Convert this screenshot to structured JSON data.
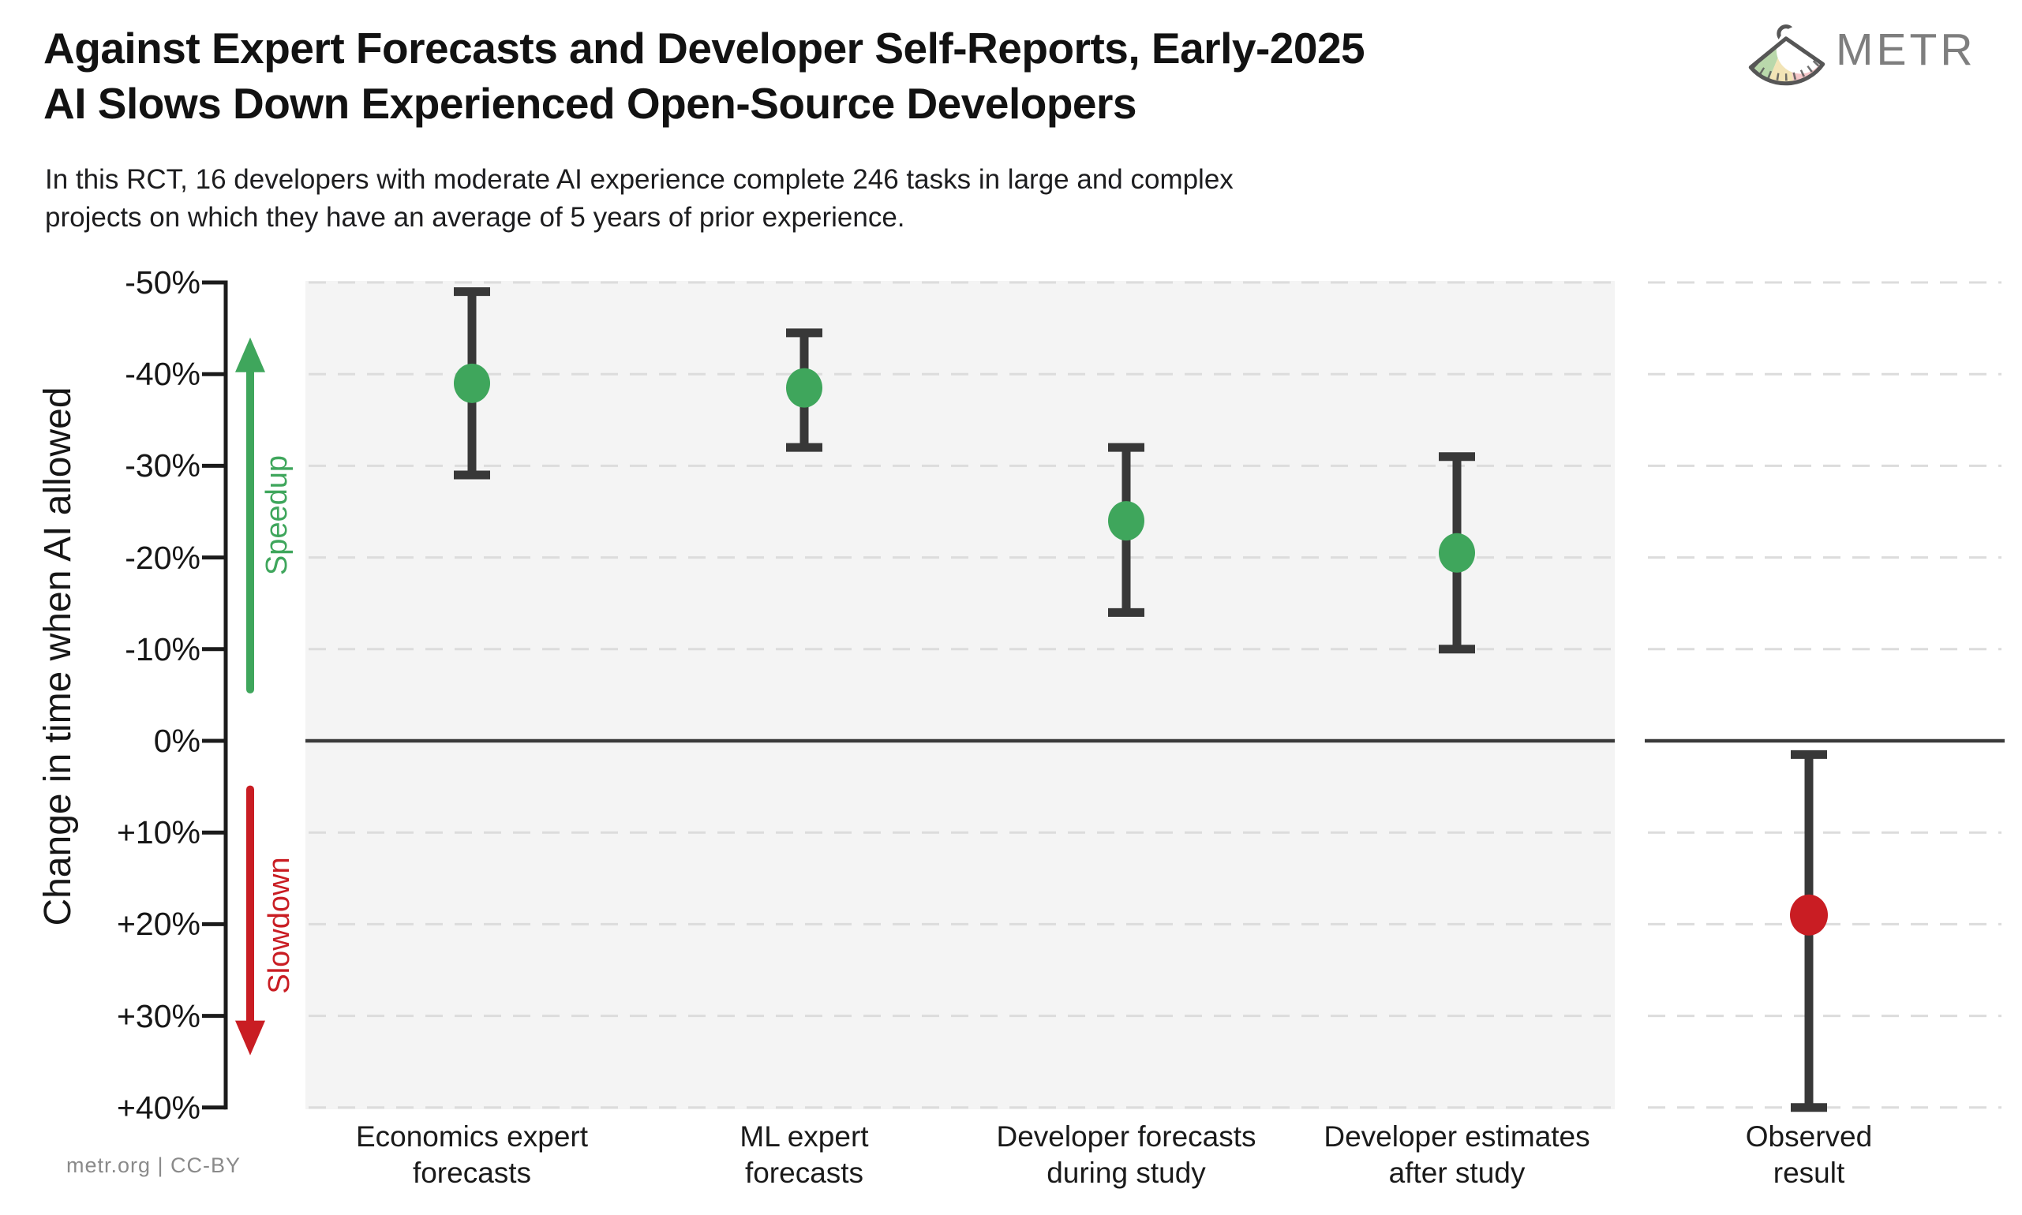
{
  "header": {
    "title_line1": "Against Expert Forecasts and Developer Self-Reports, Early-2025",
    "title_line2": "AI Slows Down Experienced Open-Source Developers",
    "subtitle_line1": "In this RCT, 16 developers with moderate AI experience complete 246 tasks in large and complex",
    "subtitle_line2": "projects on which they have an average of 5 years of prior experience.",
    "logo_text": "METR"
  },
  "footer": {
    "text": "metr.org  |  CC-BY"
  },
  "colors": {
    "green": "#3fa65c",
    "red": "#c91d23",
    "bar": "#383838",
    "panel": "#f4f4f4",
    "grid": "#dcdcdc",
    "zero_line": "#3a3a3a",
    "axis": "#1b1b1b",
    "text": "#161616",
    "muted": "#8a8a8a",
    "logo_gray": "#7e7e7e",
    "logo_outline": "#565656",
    "logo_green": "#b9d8ab",
    "logo_cream": "#f2e4b6",
    "logo_pink": "#f5c6c8"
  },
  "chart_data": {
    "type": "scatter",
    "title": "Against Expert Forecasts and Developer Self-Reports, Early-2025 AI Slows Down Experienced Open-Source Developers",
    "ylabel": "Change in time when AI allowed",
    "yaxis": {
      "ticks": [
        -50,
        -40,
        -30,
        -20,
        -10,
        0,
        10,
        20,
        30,
        40
      ],
      "tick_labels": [
        "-50%",
        "-40%",
        "-30%",
        "-20%",
        "-10%",
        "0%",
        "+10%",
        "+20%",
        "+30%",
        "+40%"
      ],
      "top_value": -50,
      "bottom_value": 40,
      "inverted": true,
      "grid": "dashed",
      "zero_line": "solid"
    },
    "annotations": {
      "speedup": "Speedup",
      "slowdown": "Slowdown",
      "speedup_arrow_span": [
        -44,
        -5.6
      ],
      "slowdown_arrow_span": [
        5.3,
        34.3
      ]
    },
    "points": [
      {
        "label_lines": [
          "Economics expert",
          "forecasts"
        ],
        "value": -39,
        "ci": [
          -49,
          -29
        ],
        "group": "forecast"
      },
      {
        "label_lines": [
          "ML expert",
          "forecasts"
        ],
        "value": -38.5,
        "ci": [
          -44.5,
          -32
        ],
        "group": "forecast"
      },
      {
        "label_lines": [
          "Developer forecasts",
          "during study"
        ],
        "value": -24,
        "ci": [
          -32,
          -14
        ],
        "group": "forecast"
      },
      {
        "label_lines": [
          "Developer estimates",
          "after study"
        ],
        "value": -20.5,
        "ci": [
          -31,
          -10
        ],
        "group": "forecast"
      },
      {
        "label_lines": [
          "Observed",
          "result"
        ],
        "value": 19,
        "ci": [
          1.5,
          40
        ],
        "group": "observed"
      }
    ]
  }
}
